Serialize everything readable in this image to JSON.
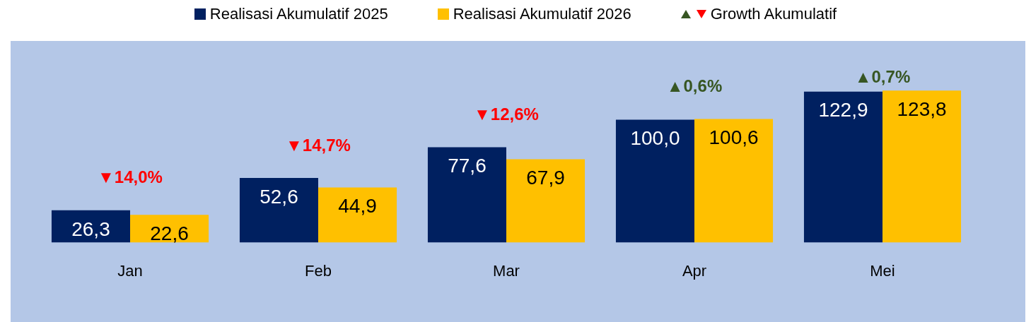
{
  "chart_data": {
    "type": "bar",
    "categories": [
      "Jan",
      "Feb",
      "Mar",
      "Apr",
      "Mei"
    ],
    "series": [
      {
        "name": "Realisasi Akumulatif 2025",
        "color": "#002060",
        "values": [
          26.3,
          52.6,
          77.6,
          100.0,
          122.9
        ],
        "value_labels": [
          "26,3",
          "52,6",
          "77,6",
          "100,0",
          "122,9"
        ]
      },
      {
        "name": "Realisasi Akumulatif 2026",
        "color": "#ffc000",
        "values": [
          22.6,
          44.9,
          67.9,
          100.6,
          123.8
        ],
        "value_labels": [
          "22,6",
          "44,9",
          "67,9",
          "100,6",
          "123,8"
        ]
      }
    ],
    "annotations": [
      "▼14,0%",
      "▼14,7%",
      "▼12,6%",
      "▲0,6%",
      "▲0,7%",
      "Growth Akumulatif"
    ],
    "legend": "top",
    "grid": false,
    "tick_labels": "x"
  }
}
